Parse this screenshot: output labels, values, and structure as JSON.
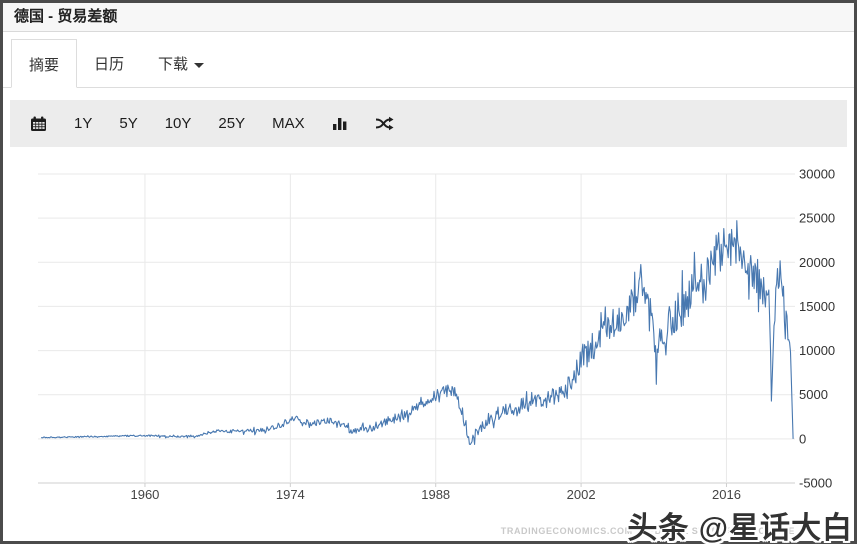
{
  "header": {
    "title": "德国 - 贸易差额"
  },
  "tabs": [
    {
      "label": "摘要",
      "active": true
    },
    {
      "label": "日历",
      "active": false
    },
    {
      "label": "下载",
      "active": false,
      "has_dropdown": true
    }
  ],
  "toolbar": {
    "ranges": [
      "1Y",
      "5Y",
      "10Y",
      "25Y",
      "MAX"
    ],
    "icons": [
      "calendar-icon",
      "bar-chart-icon",
      "shuffle-compare-icon"
    ]
  },
  "chart_data": {
    "type": "line",
    "title": "",
    "xlabel": "",
    "ylabel": "",
    "frequency": "monthly",
    "xlim": [
      1949.7,
      2022.6
    ],
    "ylim": [
      -5000,
      30000
    ],
    "xticks": [
      1960,
      1974,
      1988,
      2002,
      2016
    ],
    "yticks": [
      30000,
      25000,
      20000,
      15000,
      10000,
      5000,
      0,
      -5000
    ],
    "grid": true,
    "legend": false,
    "y_axis_side": "right",
    "series": [
      {
        "color": "#4878b0",
        "x_start": 1950.0,
        "x_end": 2022.42,
        "step_years": 0.08333,
        "trend_keypoints": [
          [
            1950,
            150
          ],
          [
            1953,
            200
          ],
          [
            1957,
            300
          ],
          [
            1960,
            380
          ],
          [
            1963,
            250
          ],
          [
            1965,
            350
          ],
          [
            1967,
            900
          ],
          [
            1969,
            850
          ],
          [
            1971,
            900
          ],
          [
            1973,
            1500
          ],
          [
            1974.5,
            2300
          ],
          [
            1976,
            1700
          ],
          [
            1978,
            2100
          ],
          [
            1980,
            900
          ],
          [
            1981.5,
            1100
          ],
          [
            1983,
            1900
          ],
          [
            1985,
            2600
          ],
          [
            1987,
            4200
          ],
          [
            1988.5,
            5300
          ],
          [
            1989.7,
            5600
          ],
          [
            1990.5,
            3200
          ],
          [
            1991.3,
            -200
          ],
          [
            1992,
            1000
          ],
          [
            1993.5,
            2600
          ],
          [
            1995,
            3300
          ],
          [
            1997,
            4000
          ],
          [
            1999,
            4600
          ],
          [
            2000.5,
            5200
          ],
          [
            2002,
            9000
          ],
          [
            2003.5,
            11000
          ],
          [
            2005,
            13000
          ],
          [
            2006.5,
            14500
          ],
          [
            2007.5,
            16800
          ],
          [
            2008.5,
            15500
          ],
          [
            2009.2,
            9000
          ],
          [
            2010,
            12800
          ],
          [
            2011,
            13500
          ],
          [
            2012,
            15800
          ],
          [
            2013,
            16800
          ],
          [
            2014,
            18200
          ],
          [
            2015,
            20800
          ],
          [
            2016,
            22300
          ],
          [
            2017,
            21800
          ],
          [
            2018,
            19800
          ],
          [
            2019,
            18600
          ],
          [
            2020.1,
            15500
          ],
          [
            2020.35,
            4200
          ],
          [
            2020.8,
            19000
          ],
          [
            2021.3,
            17500
          ],
          [
            2021.7,
            13500
          ],
          [
            2022.0,
            11800
          ],
          [
            2022.2,
            9500
          ],
          [
            2022.33,
            3500
          ],
          [
            2022.42,
            400
          ]
        ],
        "noise_keypoints": [
          [
            1950,
            60
          ],
          [
            1958,
            80
          ],
          [
            1965,
            120
          ],
          [
            1970,
            220
          ],
          [
            1975,
            320
          ],
          [
            1980,
            380
          ],
          [
            1985,
            550
          ],
          [
            1989,
            700
          ],
          [
            1992,
            700
          ],
          [
            1996,
            800
          ],
          [
            2000,
            1100
          ],
          [
            2003,
            1700
          ],
          [
            2006,
            1900
          ],
          [
            2009,
            2100
          ],
          [
            2012,
            2600
          ],
          [
            2016,
            2500
          ],
          [
            2019,
            2300
          ],
          [
            2020.5,
            1500
          ],
          [
            2021.5,
            1800
          ],
          [
            2022.42,
            400
          ]
        ]
      }
    ],
    "source_watermark": "TRADINGECONOMICS.COM  |  FEDERAL STATISTICAL OFFICE"
  },
  "overlay": {
    "text": "头条 @星话大白"
  },
  "colors": {
    "line": "#4878b0",
    "grid": "#e9e9e9",
    "axis": "#cfcfcf",
    "tick_label": "#333333",
    "toolbar_bg": "#ececec",
    "titlebar_bg": "#f7f7f7",
    "frame_border": "#4b4b4b"
  }
}
